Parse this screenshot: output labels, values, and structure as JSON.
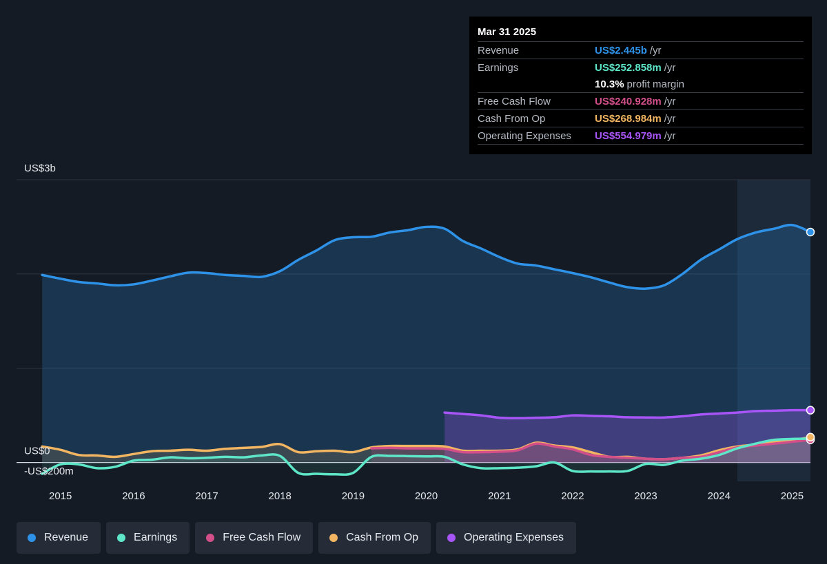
{
  "tooltip": {
    "date": "Mar 31 2025",
    "rows": [
      {
        "label": "Revenue",
        "value": "US$2.445b",
        "unit": "/yr",
        "color": "#2e93e8"
      },
      {
        "label": "Earnings",
        "value": "US$252.858m",
        "unit": "/yr",
        "color": "#5ee6c9"
      },
      {
        "label": "",
        "value": "10.3%",
        "unit": "profit margin",
        "color": "#ffffff"
      },
      {
        "label": "Free Cash Flow",
        "value": "US$240.928m",
        "unit": "/yr",
        "color": "#d24f8a"
      },
      {
        "label": "Cash From Op",
        "value": "US$268.984m",
        "unit": "/yr",
        "color": "#f2b561"
      },
      {
        "label": "Operating Expenses",
        "value": "US$554.979m",
        "unit": "/yr",
        "color": "#a855f7"
      }
    ]
  },
  "legend": [
    {
      "label": "Revenue",
      "color": "#2e93e8"
    },
    {
      "label": "Earnings",
      "color": "#5ee6c9"
    },
    {
      "label": "Free Cash Flow",
      "color": "#d24f8a"
    },
    {
      "label": "Cash From Op",
      "color": "#f2b561"
    },
    {
      "label": "Operating Expenses",
      "color": "#a855f7"
    }
  ],
  "chart_data": {
    "type": "line",
    "y_unit": "US$ millions",
    "ylim": [
      -200,
      3000
    ],
    "y_tick_labels": [
      {
        "value": 3000,
        "label": "US$3b"
      },
      {
        "value": 0,
        "label": "US$0"
      },
      {
        "value": -200,
        "label": "-US$200m"
      }
    ],
    "y_gridlines": [
      3000,
      2000,
      1000,
      0
    ],
    "x_tick_labels": [
      "2015",
      "2016",
      "2017",
      "2018",
      "2019",
      "2020",
      "2021",
      "2022",
      "2023",
      "2024",
      "2025"
    ],
    "xlim": [
      2014.4,
      2025.25
    ],
    "forecast_shade_start": 2024.25,
    "series": [
      {
        "name": "Revenue",
        "color": "#2e93e8",
        "x": [
          2014.75,
          2015.0,
          2015.25,
          2015.5,
          2015.75,
          2016.0,
          2016.25,
          2016.5,
          2016.75,
          2017.0,
          2017.25,
          2017.5,
          2017.75,
          2018.0,
          2018.25,
          2018.5,
          2018.75,
          2019.0,
          2019.25,
          2019.5,
          2019.75,
          2020.0,
          2020.25,
          2020.5,
          2020.75,
          2021.0,
          2021.25,
          2021.5,
          2021.75,
          2022.0,
          2022.25,
          2022.5,
          2022.75,
          2023.0,
          2023.25,
          2023.5,
          2023.75,
          2024.0,
          2024.25,
          2024.5,
          2024.75,
          2025.0,
          2025.25
        ],
        "y": [
          1990,
          1950,
          1915,
          1900,
          1880,
          1890,
          1930,
          1975,
          2015,
          2010,
          1990,
          1980,
          1970,
          2030,
          2150,
          2250,
          2360,
          2390,
          2395,
          2440,
          2465,
          2500,
          2480,
          2350,
          2270,
          2180,
          2110,
          2090,
          2050,
          2010,
          1965,
          1910,
          1860,
          1845,
          1880,
          2000,
          2150,
          2260,
          2370,
          2440,
          2480,
          2520,
          2445
        ]
      },
      {
        "name": "Earnings",
        "color": "#5ee6c9",
        "x": [
          2014.75,
          2015.0,
          2015.25,
          2015.5,
          2015.75,
          2016.0,
          2016.25,
          2016.5,
          2016.75,
          2017.0,
          2017.25,
          2017.5,
          2017.75,
          2018.0,
          2018.25,
          2018.5,
          2018.75,
          2019.0,
          2019.25,
          2019.5,
          2019.75,
          2020.0,
          2020.25,
          2020.5,
          2020.75,
          2021.0,
          2021.25,
          2021.5,
          2021.75,
          2022.0,
          2022.25,
          2022.5,
          2022.75,
          2023.0,
          2023.25,
          2023.5,
          2023.75,
          2024.0,
          2024.25,
          2024.5,
          2024.75,
          2025.0,
          2025.25
        ],
        "y": [
          -120,
          -20,
          -20,
          -60,
          -45,
          20,
          30,
          55,
          45,
          50,
          60,
          55,
          75,
          70,
          -110,
          -120,
          -125,
          -110,
          60,
          70,
          68,
          65,
          60,
          -20,
          -60,
          -60,
          -55,
          -40,
          0,
          -90,
          -95,
          -95,
          -90,
          -15,
          -25,
          20,
          40,
          80,
          150,
          200,
          240,
          250,
          253
        ]
      },
      {
        "name": "Free Cash Flow",
        "color": "#d24f8a",
        "x": [
          2019.25,
          2019.5,
          2019.75,
          2020.0,
          2020.25,
          2020.5,
          2020.75,
          2021.0,
          2021.25,
          2021.5,
          2021.75,
          2022.0,
          2022.25,
          2022.5,
          2022.75,
          2023.0,
          2023.25,
          2023.5,
          2023.75,
          2024.0,
          2024.25,
          2024.5,
          2024.75,
          2025.0,
          2025.25
        ],
        "y": [
          150,
          155,
          150,
          150,
          145,
          110,
          110,
          115,
          130,
          200,
          170,
          140,
          80,
          60,
          50,
          40,
          35,
          50,
          60,
          110,
          160,
          180,
          200,
          220,
          241
        ]
      },
      {
        "name": "Cash From Op",
        "color": "#f2b561",
        "x": [
          2014.75,
          2015.0,
          2015.25,
          2015.5,
          2015.75,
          2016.0,
          2016.25,
          2016.5,
          2016.75,
          2017.0,
          2017.25,
          2017.5,
          2017.75,
          2018.0,
          2018.25,
          2018.5,
          2018.75,
          2019.0,
          2019.25,
          2019.5,
          2019.75,
          2020.0,
          2020.25,
          2020.5,
          2020.75,
          2021.0,
          2021.25,
          2021.5,
          2021.75,
          2022.0,
          2022.25,
          2022.5,
          2022.75,
          2023.0,
          2023.25,
          2023.5,
          2023.75,
          2024.0,
          2024.25,
          2024.5,
          2024.75,
          2025.0,
          2025.25
        ],
        "y": [
          170,
          135,
          80,
          75,
          60,
          90,
          120,
          125,
          135,
          125,
          145,
          155,
          165,
          195,
          110,
          120,
          125,
          110,
          160,
          175,
          175,
          175,
          170,
          125,
          125,
          125,
          140,
          210,
          180,
          160,
          110,
          60,
          60,
          40,
          35,
          50,
          75,
          130,
          170,
          190,
          215,
          235,
          269
        ]
      },
      {
        "name": "Operating Expenses",
        "color": "#a855f7",
        "x": [
          2020.25,
          2020.5,
          2020.75,
          2021.0,
          2021.25,
          2021.5,
          2021.75,
          2022.0,
          2022.25,
          2022.5,
          2022.75,
          2023.0,
          2023.25,
          2023.5,
          2023.75,
          2024.0,
          2024.25,
          2024.5,
          2024.75,
          2025.0,
          2025.25
        ],
        "y": [
          530,
          515,
          500,
          475,
          470,
          475,
          480,
          500,
          495,
          490,
          480,
          478,
          478,
          490,
          510,
          520,
          530,
          545,
          550,
          555,
          555
        ]
      }
    ]
  }
}
